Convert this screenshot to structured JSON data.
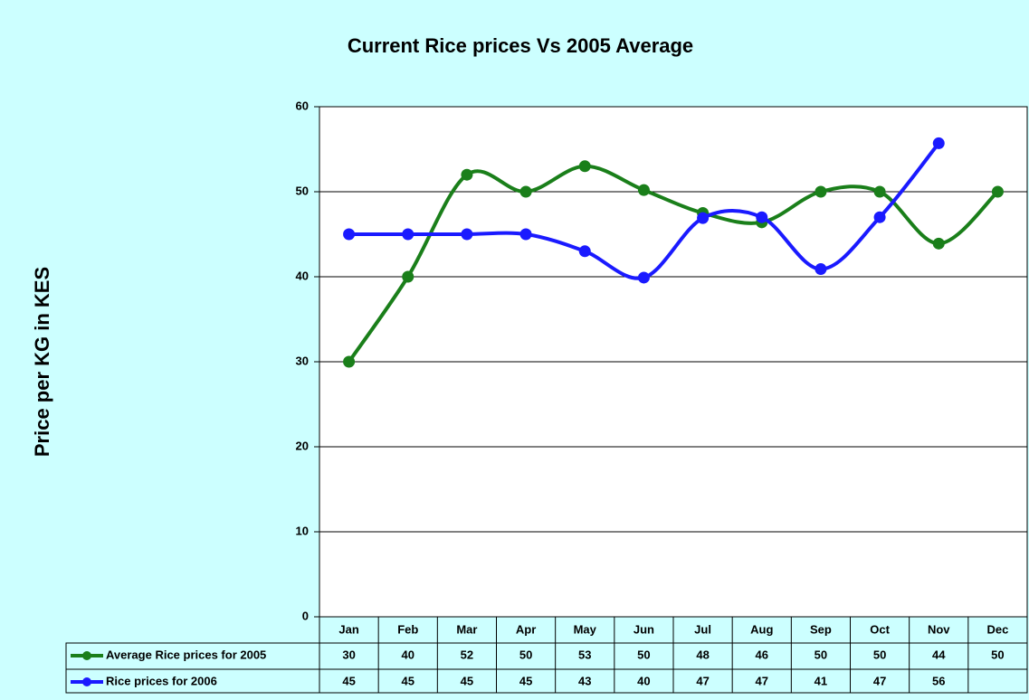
{
  "chart_data": {
    "type": "line",
    "title": "Current Rice prices Vs 2005 Average",
    "ylabel": "Price per KG in KES",
    "categories": [
      "Jan",
      "Feb",
      "Mar",
      "Apr",
      "May",
      "Jun",
      "Jul",
      "Aug",
      "Sep",
      "Oct",
      "Nov",
      "Dec"
    ],
    "series": [
      {
        "name": "Average Rice prices for 2005",
        "color": "#1a7f1a",
        "values": [
          30,
          40,
          52,
          50,
          53,
          50.2,
          47.5,
          46.4,
          50,
          50,
          43.9,
          50
        ],
        "value_labels": [
          "30",
          "40",
          "52",
          "50",
          "53",
          "50",
          "48",
          "46",
          "50",
          "50",
          "44",
          "50"
        ]
      },
      {
        "name": "Rice prices for 2006",
        "color": "#1a1aff",
        "values": [
          45,
          45,
          45,
          45,
          43,
          39.9,
          46.9,
          47,
          40.9,
          47,
          55.7,
          null
        ],
        "value_labels": [
          "45",
          "45",
          "45",
          "45",
          "43",
          "40",
          "47",
          "47",
          "41",
          "47",
          "56",
          null
        ]
      }
    ],
    "ylim": [
      0,
      60
    ],
    "yticks": [
      0,
      10,
      20,
      30,
      40,
      50,
      60
    ],
    "grid": true,
    "smooth": true,
    "data_table": true
  }
}
